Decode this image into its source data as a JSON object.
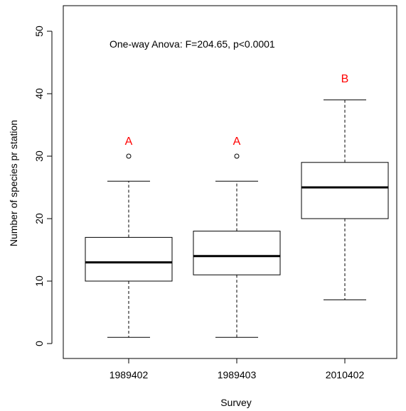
{
  "chart_data": {
    "type": "boxplot",
    "xlabel": "Survey",
    "ylabel": "Number of species pr station",
    "annotation": "One-way Anova: F=204.65, p<0.0001",
    "ylim": [
      -2,
      54
    ],
    "yticks": [
      "0",
      "10",
      "20",
      "30",
      "40",
      "50"
    ],
    "ytick_values": [
      0,
      10,
      20,
      30,
      40,
      50
    ],
    "categories": [
      "1989402",
      "1989403",
      "2010402"
    ],
    "boxes": [
      {
        "category": "1989402",
        "whisker_low": 1,
        "q1": 10,
        "median": 13,
        "q3": 17,
        "whisker_high": 26,
        "outliers": [
          30
        ],
        "group_letter": "A",
        "letter_y": 32.5
      },
      {
        "category": "1989403",
        "whisker_low": 1,
        "q1": 11,
        "median": 14,
        "q3": 18,
        "whisker_high": 26,
        "outliers": [
          30
        ],
        "group_letter": "A",
        "letter_y": 32.5
      },
      {
        "category": "2010402",
        "whisker_low": 7,
        "q1": 20,
        "median": 25,
        "q3": 29,
        "whisker_high": 39,
        "outliers": [],
        "group_letter": "B",
        "letter_y": 42.5
      }
    ],
    "letter_color": "#ff0000",
    "grid": false,
    "legend": "none"
  }
}
